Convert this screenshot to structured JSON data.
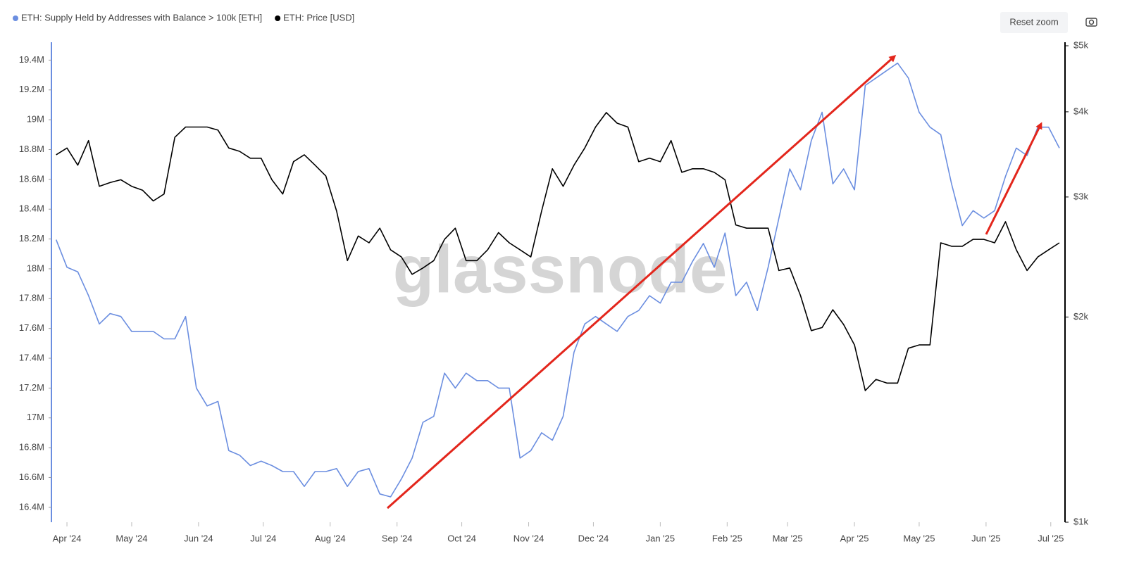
{
  "chart_data": {
    "type": "line",
    "watermark": "glassnode",
    "x": [
      -5,
      0,
      5,
      10,
      15,
      20,
      25,
      30,
      35,
      40,
      45,
      50,
      55,
      60,
      65,
      70,
      75,
      80,
      85,
      90,
      95,
      100,
      105,
      110,
      115,
      120,
      125,
      130,
      135,
      140,
      145,
      150,
      155,
      160,
      165,
      170,
      175,
      180,
      185,
      190,
      195,
      200,
      205,
      210,
      215,
      220,
      225,
      230,
      235,
      240,
      245,
      250,
      255,
      260,
      265,
      270,
      275,
      280,
      285,
      290,
      295,
      300,
      305,
      310,
      315,
      320,
      325,
      330,
      335,
      340,
      345,
      350,
      355,
      360,
      365,
      370,
      375,
      380,
      385,
      390,
      395,
      400,
      405,
      410,
      415,
      420,
      425,
      430,
      435,
      440,
      445,
      450,
      455,
      460
    ],
    "xlim": [
      -7.2,
      462.6
    ],
    "xticks": [
      {
        "value": 0,
        "label": "Apr '24"
      },
      {
        "value": 30,
        "label": "May '24"
      },
      {
        "value": 61,
        "label": "Jun '24"
      },
      {
        "value": 91,
        "label": "Jul '24"
      },
      {
        "value": 122,
        "label": "Aug '24"
      },
      {
        "value": 153,
        "label": "Sep '24"
      },
      {
        "value": 183,
        "label": "Oct '24"
      },
      {
        "value": 214,
        "label": "Nov '24"
      },
      {
        "value": 244,
        "label": "Dec '24"
      },
      {
        "value": 275,
        "label": "Jan '25"
      },
      {
        "value": 306,
        "label": "Feb '25"
      },
      {
        "value": 334,
        "label": "Mar '25"
      },
      {
        "value": 365,
        "label": "Apr '25"
      },
      {
        "value": 395,
        "label": "May '25"
      },
      {
        "value": 426,
        "label": "Jun '25"
      },
      {
        "value": 456,
        "label": "Jul '25"
      }
    ],
    "ylim": [
      16300000,
      19520000
    ],
    "yticks": [
      {
        "value": 16400000,
        "label": "16.4M"
      },
      {
        "value": 16600000,
        "label": "16.6M"
      },
      {
        "value": 16800000,
        "label": "16.8M"
      },
      {
        "value": 17000000,
        "label": "17M"
      },
      {
        "value": 17200000,
        "label": "17.2M"
      },
      {
        "value": 17400000,
        "label": "17.4M"
      },
      {
        "value": 17600000,
        "label": "17.6M"
      },
      {
        "value": 17800000,
        "label": "17.8M"
      },
      {
        "value": 18000000,
        "label": "18M"
      },
      {
        "value": 18200000,
        "label": "18.2M"
      },
      {
        "value": 18400000,
        "label": "18.4M"
      },
      {
        "value": 18600000,
        "label": "18.6M"
      },
      {
        "value": 18800000,
        "label": "18.8M"
      },
      {
        "value": 19000000,
        "label": "19M"
      },
      {
        "value": 19200000,
        "label": "19.2M"
      },
      {
        "value": 19400000,
        "label": "19.4M"
      }
    ],
    "y2lim": [
      1000,
      5060
    ],
    "y2scale": "log",
    "y2ticks": [
      {
        "value": 1000,
        "label": "$1k"
      },
      {
        "value": 2000,
        "label": "$2k"
      },
      {
        "value": 3000,
        "label": "$3k"
      },
      {
        "value": 4000,
        "label": "$4k"
      },
      {
        "value": 5000,
        "label": "$5k"
      }
    ],
    "grid": false,
    "series": [
      {
        "name": "ETH: Supply Held by Addresses with Balance > 100k [ETH]",
        "color": "#6b8ee0",
        "values": [
          18195000,
          18010000,
          17980000,
          17820000,
          17630000,
          17700000,
          17680000,
          17580000,
          17580000,
          17580000,
          17530000,
          17530000,
          17680000,
          17200000,
          17080000,
          17110000,
          16780000,
          16750000,
          16680000,
          16710000,
          16680000,
          16640000,
          16640000,
          16540000,
          16640000,
          16640000,
          16660000,
          16540000,
          16640000,
          16660000,
          16490000,
          16470000,
          16590000,
          16730000,
          16970000,
          17010000,
          17300000,
          17200000,
          17300000,
          17250000,
          17250000,
          17200000,
          17200000,
          16730000,
          16780000,
          16900000,
          16850000,
          17010000,
          17440000,
          17630000,
          17680000,
          17630000,
          17580000,
          17680000,
          17720000,
          17820000,
          17770000,
          17910000,
          17910000,
          18050000,
          18170000,
          18010000,
          18240000,
          17820000,
          17910000,
          17720000,
          18010000,
          18340000,
          18670000,
          18530000,
          18860000,
          19050000,
          18570000,
          18670000,
          18530000,
          19230000,
          19280000,
          19330000,
          19380000,
          19280000,
          19050000,
          18950000,
          18900000,
          18570000,
          18290000,
          18390000,
          18340000,
          18390000,
          18620000,
          18810000,
          18760000,
          18950000,
          18950000,
          18810000
        ]
      },
      {
        "name": "ETH: Price [USD]",
        "color": "#000000",
        "axis": "y2",
        "values": [
          3460,
          3540,
          3340,
          3630,
          3110,
          3150,
          3180,
          3110,
          3070,
          2960,
          3030,
          3670,
          3800,
          3800,
          3800,
          3760,
          3540,
          3500,
          3420,
          3420,
          3180,
          3030,
          3380,
          3460,
          3340,
          3220,
          2860,
          2420,
          2630,
          2570,
          2700,
          2510,
          2450,
          2310,
          2360,
          2420,
          2600,
          2700,
          2420,
          2420,
          2510,
          2660,
          2570,
          2510,
          2450,
          2860,
          3300,
          3110,
          3340,
          3540,
          3800,
          3990,
          3850,
          3800,
          3380,
          3420,
          3380,
          3630,
          3260,
          3300,
          3300,
          3260,
          3180,
          2730,
          2700,
          2700,
          2700,
          2340,
          2360,
          2150,
          1910,
          1930,
          2050,
          1950,
          1820,
          1560,
          1620,
          1600,
          1600,
          1800,
          1820,
          1820,
          2570,
          2540,
          2540,
          2600,
          2600,
          2570,
          2760,
          2510,
          2340,
          2450,
          2510,
          2570
        ]
      }
    ]
  },
  "controls": {
    "reset_zoom": "Reset zoom"
  }
}
